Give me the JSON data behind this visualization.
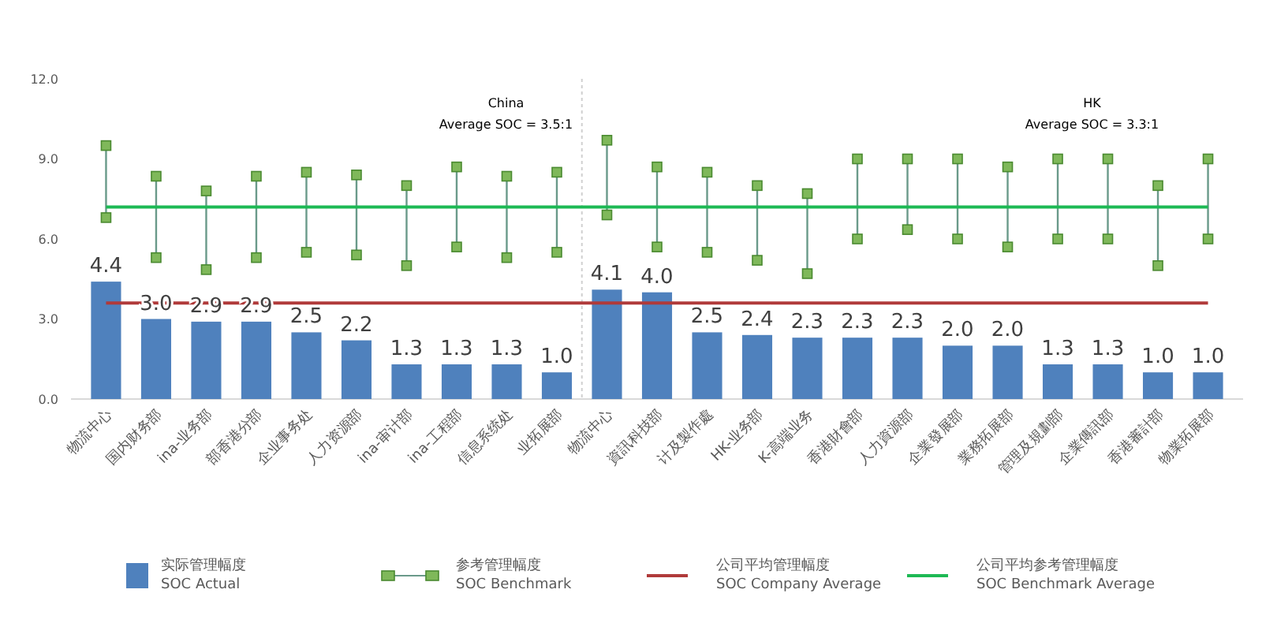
{
  "chart_data": {
    "type": "bar",
    "categories": [
      "物流中心",
      "国内财务部",
      "ina-业务部",
      "部香港分部",
      "企业事务处",
      "人力资源部",
      "ina-审计部",
      "ina-工程部",
      "信息系统处",
      "业拓展部",
      "物流中心",
      "資訊科技部",
      "计及製作處",
      "HK-业务部",
      "K-高端业务",
      "香港財會部",
      "人力資源部",
      "企業發展部",
      "業務拓展部",
      "管理及規劃部",
      "企業傳訊部",
      "香港審計部",
      "物業拓展部"
    ],
    "ylim": [
      0,
      12
    ],
    "yticks": [
      {
        "value": 0,
        "label": "0.0"
      },
      {
        "value": 3,
        "label": "3.0"
      },
      {
        "value": 6,
        "label": "6.0"
      },
      {
        "value": 9,
        "label": "9.0"
      },
      {
        "value": 12,
        "label": "12.0"
      }
    ],
    "series": [
      {
        "name": "实际管理幅度\nSOC Actual",
        "color": "#4f81bd",
        "values": [
          4.4,
          3.0,
          2.9,
          2.9,
          2.5,
          2.2,
          1.3,
          1.3,
          1.3,
          1.0,
          4.1,
          4.0,
          2.5,
          2.4,
          2.3,
          2.3,
          2.3,
          2.0,
          2.0,
          1.3,
          1.3,
          1.0,
          1.0
        ],
        "value_labels": [
          "4.4",
          "3.0",
          "2.9",
          "2.9",
          "2.5",
          "2.2",
          "1.3",
          "1.3",
          "1.3",
          "1.0",
          "4.1",
          "4.0",
          "2.5",
          "2.4",
          "2.3",
          "2.3",
          "2.3",
          "2.0",
          "2.0",
          "1.3",
          "1.3",
          "1.0",
          "1.0"
        ]
      },
      {
        "name": "参考管理幅度\nSOC Benchmark",
        "color": "#6a9a8a",
        "marker": "square",
        "base": [
          6.8,
          5.3,
          4.85,
          5.3,
          5.5,
          5.4,
          5.0,
          5.7,
          5.3,
          5.5,
          6.9,
          5.7,
          5.5,
          5.2,
          4.7,
          6.0,
          6.35,
          6.0,
          5.7,
          6.0,
          6.0,
          5.0,
          6.0
        ],
        "values": [
          2.7,
          3.05,
          2.95,
          3.05,
          3.0,
          3.0,
          3.0,
          3.0,
          3.05,
          3.0,
          2.8,
          3.0,
          3.0,
          2.8,
          3.0,
          3.0,
          2.65,
          3.0,
          3.0,
          3.0,
          3.0,
          3.0,
          3.0
        ]
      },
      {
        "name": "公司平均管理幅度\nSOC Company Average",
        "type": "line",
        "color": "#b03a3a",
        "values": [
          3.6,
          3.6,
          3.6,
          3.6,
          3.6,
          3.6,
          3.6,
          3.6,
          3.6,
          3.6,
          3.6,
          3.6,
          3.6,
          3.6,
          3.6,
          3.6,
          3.6,
          3.6,
          3.6,
          3.6,
          3.6,
          3.6,
          3.6
        ]
      },
      {
        "name": "公司平均参考管理幅度\nSOC Benchmark Average",
        "type": "line",
        "color": "#1db954",
        "values": [
          7.2,
          7.2,
          7.2,
          7.2,
          7.2,
          7.2,
          7.2,
          7.2,
          7.2,
          7.2,
          7.2,
          7.2,
          7.2,
          7.2,
          7.2,
          7.2,
          7.2,
          7.2,
          7.2,
          7.2,
          7.2,
          7.2,
          7.2
        ]
      }
    ],
    "annotations": [
      "China\nAverage SOC =  3.5:1",
      "HK\nAverage SOC =  3.3:1"
    ],
    "legend": "bottom",
    "grid": false
  }
}
